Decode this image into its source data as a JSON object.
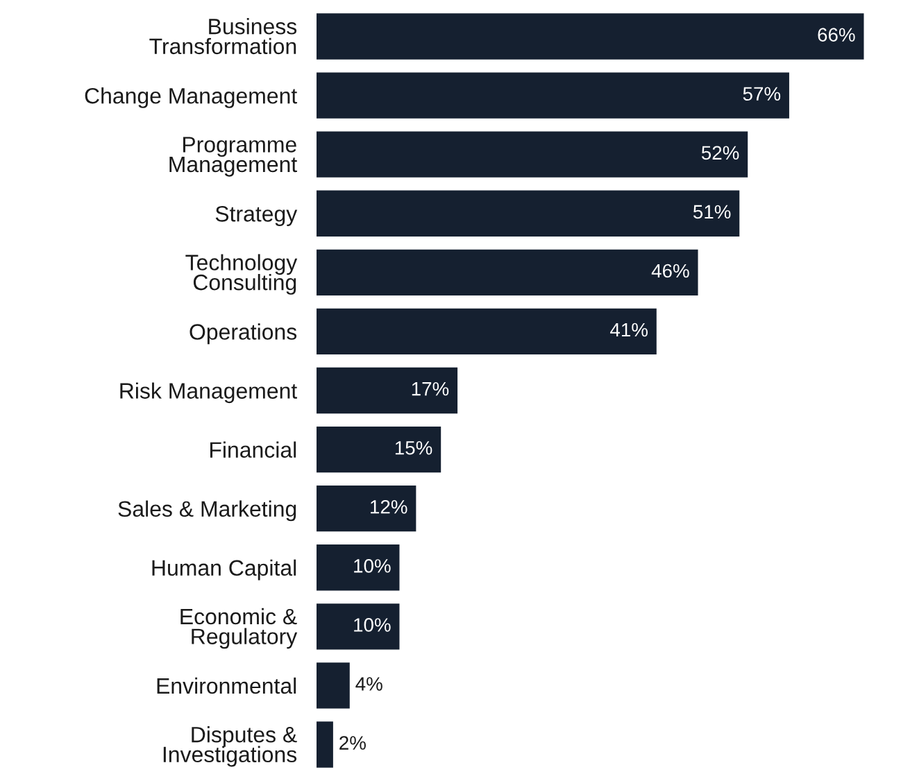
{
  "chart_data": {
    "type": "bar",
    "orientation": "horizontal",
    "data_labels": true,
    "grid": false,
    "legend": false,
    "tick_labels": "y",
    "categories": [
      "Business\nTransformation",
      "Change Management",
      "Programme\nManagement",
      "Strategy",
      "Technology\nConsulting",
      "Operations",
      "Risk Management",
      "Financial",
      "Sales & Marketing",
      "Human Capital",
      "Economic &\nRegulatory",
      "Environmental",
      "Disputes &\nInvestigations"
    ],
    "values": [
      66,
      57,
      52,
      51,
      46,
      41,
      17,
      15,
      12,
      10,
      10,
      4,
      2
    ],
    "value_labels": [
      "66%",
      "57%",
      "52%",
      "51%",
      "46%",
      "41%",
      "17%",
      "15%",
      "12%",
      "10%",
      "10%",
      "4%",
      "2%"
    ],
    "color": "#152030"
  }
}
